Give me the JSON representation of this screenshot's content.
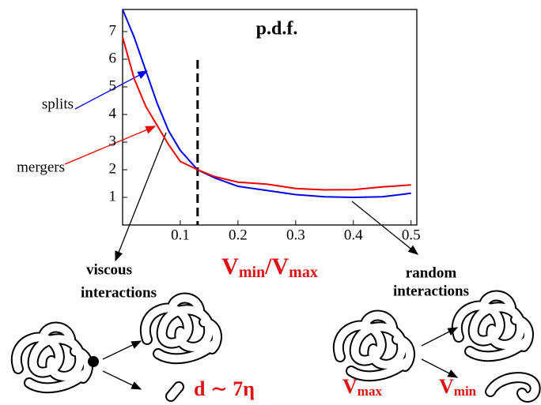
{
  "chart_data": {
    "type": "line",
    "title": "p.d.f.",
    "xlabel": [
      "V",
      "min",
      "/V",
      "max"
    ],
    "x": [
      0,
      0.02,
      0.04,
      0.06,
      0.08,
      0.1,
      0.13,
      0.16,
      0.2,
      0.25,
      0.3,
      0.35,
      0.4,
      0.45,
      0.5
    ],
    "series": [
      {
        "name": "splits",
        "color": "#0000ee",
        "values": [
          7.8,
          6.8,
          5.6,
          4.4,
          3.4,
          2.7,
          2.0,
          1.7,
          1.4,
          1.25,
          1.1,
          1.02,
          1.0,
          1.02,
          1.15
        ]
      },
      {
        "name": "mergers",
        "color": "#ee0000",
        "values": [
          6.8,
          5.3,
          4.3,
          3.6,
          2.9,
          2.3,
          2.0,
          1.75,
          1.55,
          1.48,
          1.32,
          1.27,
          1.28,
          1.38,
          1.45
        ]
      }
    ],
    "xlim": [
      0,
      0.51
    ],
    "ylim": [
      0,
      7.8
    ],
    "xticks": [
      0.1,
      0.2,
      0.3,
      0.4,
      0.5
    ],
    "yticks": [
      1,
      2,
      3,
      4,
      5,
      6,
      7
    ],
    "vline": 0.13,
    "annotations": {
      "viscous": [
        "viscous",
        "interactions"
      ],
      "random": [
        "random",
        "interactions"
      ],
      "distance": "d ∼ 7η",
      "vmax": [
        "V",
        "max"
      ],
      "vmin": [
        "V",
        "min"
      ]
    }
  }
}
